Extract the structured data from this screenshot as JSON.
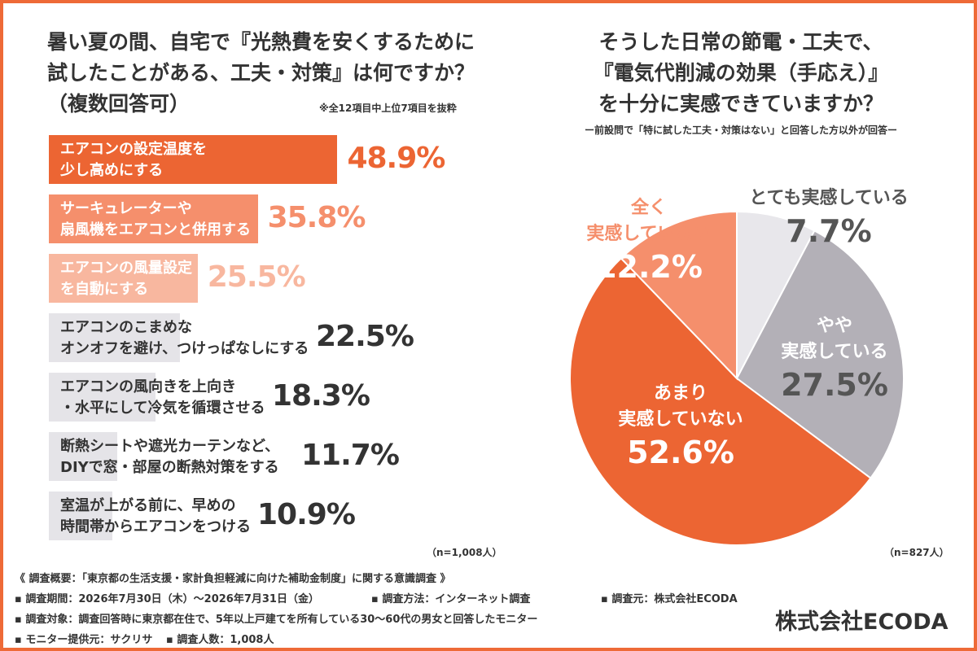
{
  "left_title": [
    "暑い夏の間、自宅で『光熱費を安くするために",
    "試したことがある、工夫・対策』は何ですか？",
    "（複数回答可）"
  ],
  "left_note": "※全12項目中上位7項目を抜粋",
  "left_n": "（n=1,008人）",
  "right_title": [
    "そうした日常の節電・工夫で、",
    "『電気代削減の効果（手応え）』",
    "を十分に実感できていますか？"
  ],
  "right_note": "ー前設問で「特に試した工夫・対策はない」と回答した方以外が回答ー",
  "right_n": "（n=827人）",
  "colors": {
    "accent": "#ee6a37",
    "bar_levels": [
      "#ec6533",
      "#f58f6c",
      "#f8b79f",
      "#e5e4e8"
    ],
    "pie": [
      "#e8e7eb",
      "#b3b0b7",
      "#ec6533",
      "#f58f6c"
    ]
  },
  "chart_data": [
    {
      "type": "bar",
      "orientation": "horizontal",
      "categories": [
        [
          "エアコンの設定温度を",
          "少し高めにする"
        ],
        [
          "サーキュレーターや",
          "扇風機をエアコンと併用する"
        ],
        [
          "エアコンの風量設定",
          "を自動にする"
        ],
        [
          "エアコンのこまめな",
          "オンオフを避け、つけっぱなしにする"
        ],
        [
          "エアコンの風向きを上向き",
          "・水平にして冷気を循環させる"
        ],
        [
          "断熱シートや遮光カーテンなど、",
          "DIYで窓・部屋の断熱対策をする"
        ],
        [
          "室温が上がる前に、早めの",
          "時間帯からエアコンをつける"
        ]
      ],
      "values": [
        48.9,
        35.8,
        25.5,
        22.5,
        18.3,
        11.7,
        10.9
      ],
      "value_labels": [
        "48.9%",
        "35.8%",
        "25.5%",
        "22.5%",
        "18.3%",
        "11.7%",
        "10.9%"
      ],
      "xlim": [
        0,
        60
      ]
    },
    {
      "type": "pie",
      "slices": [
        {
          "label": [
            "とても実感している"
          ],
          "value": 7.7,
          "value_label": "7.7%"
        },
        {
          "label": [
            "やや",
            "実感している"
          ],
          "value": 27.5,
          "value_label": "27.5%"
        },
        {
          "label": [
            "あまり",
            "実感していない"
          ],
          "value": 52.6,
          "value_label": "52.6%"
        },
        {
          "label": [
            "全く",
            "実感していない"
          ],
          "value": 12.2,
          "value_label": "12.2%"
        }
      ]
    }
  ],
  "footer": {
    "overview": "《 調査概要：「東京都の生活支援・家計負担軽減に向けた補助金制度」に関する意識調査 》",
    "period": "▪ 調査期間：2026年7月30日（木）～2026年7月31日（金）",
    "method": "▪ 調査方法：インターネット調査",
    "source": "▪ 調査元：株式会社ECODA",
    "target": "▪ 調査対象：調査回答時に東京都在住で、5年以上戸建てを所有している30～60代の男女と回答したモニター",
    "provider": "▪ モニター提供元：サクリサ",
    "count": "▪ 調査人数：1,008人"
  },
  "brand": "株式会社ECODA"
}
